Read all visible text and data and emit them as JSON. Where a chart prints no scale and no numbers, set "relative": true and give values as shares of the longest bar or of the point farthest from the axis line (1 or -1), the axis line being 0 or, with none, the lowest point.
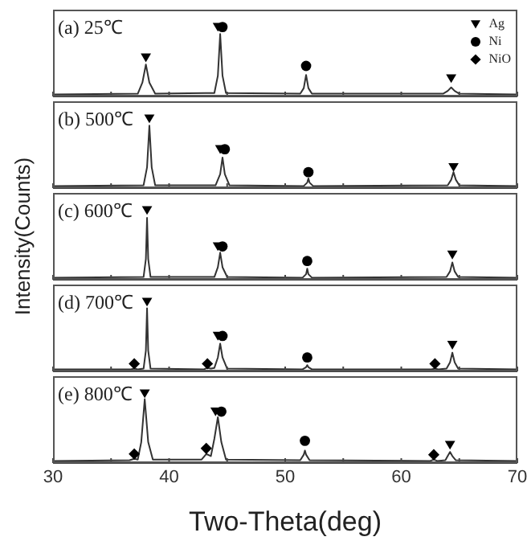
{
  "chart_data": [
    {
      "type": "line",
      "title": "(a) 25℃",
      "xlim": [
        30,
        70
      ],
      "xticks": [
        30,
        {
          "value": 35,
          "label": null
        },
        40,
        {
          "value": 45,
          "label": null
        },
        50,
        {
          "value": 55,
          "label": null
        },
        60,
        {
          "value": 65,
          "label": null
        },
        70
      ],
      "tick_labels": false,
      "relative": true,
      "legend": "top right",
      "series": [
        {
          "type": "line",
          "color": "#333333",
          "marker": "none",
          "x": [
            30,
            37.3,
            37.7,
            38.0,
            38.3,
            38.8,
            43.9,
            44.2,
            44.4,
            44.6,
            44.9,
            51.3,
            51.6,
            51.8,
            52.0,
            52.3,
            63.6,
            64.0,
            64.3,
            64.6,
            65.0,
            70
          ],
          "values": [
            0.03,
            0.04,
            0.2,
            0.46,
            0.2,
            0.04,
            0.05,
            0.3,
            0.9,
            0.3,
            0.05,
            0.04,
            0.12,
            0.31,
            0.12,
            0.04,
            0.04,
            0.08,
            0.13,
            0.08,
            0.04,
            0.03
          ]
        },
        {
          "type": "scatter",
          "name": "Ag",
          "marker": "triangle",
          "color": "#000000",
          "x": [
            38.0,
            44.2,
            64.3
          ],
          "values": [
            0.56,
            1,
            0.26
          ]
        },
        {
          "type": "scatter",
          "name": "Ni",
          "marker": "circle",
          "color": "#000000",
          "x": [
            44.6,
            51.8
          ],
          "values": [
            1,
            0.44
          ]
        },
        {
          "type": "scatter",
          "name": "NiO",
          "marker": "diamond",
          "color": "#000000"
        }
      ]
    },
    {
      "type": "line",
      "title": "(b) 500℃",
      "xlim": [
        30,
        70
      ],
      "xticks": [
        30,
        {
          "value": 35,
          "label": null
        },
        40,
        {
          "value": 45,
          "label": null
        },
        50,
        {
          "value": 55,
          "label": null
        },
        60,
        {
          "value": 65,
          "label": null
        },
        70
      ],
      "tick_labels": false,
      "relative": true,
      "series": [
        {
          "type": "line",
          "color": "#333333",
          "marker": "none",
          "x": [
            30,
            37.8,
            38.1,
            38.3,
            38.5,
            38.8,
            44.0,
            44.4,
            44.6,
            44.8,
            45.2,
            51.6,
            51.9,
            52.0,
            52.1,
            52.4,
            64.0,
            64.3,
            64.5,
            64.7,
            65.0,
            70
          ],
          "values": [
            0.03,
            0.04,
            0.3,
            0.9,
            0.3,
            0.04,
            0.04,
            0.2,
            0.44,
            0.2,
            0.04,
            0.03,
            0.08,
            0.14,
            0.08,
            0.03,
            0.04,
            0.12,
            0.23,
            0.12,
            0.04,
            0.03
          ]
        },
        {
          "type": "scatter",
          "marker": "triangle",
          "color": "#000000",
          "x": [
            38.3,
            44.4,
            64.5
          ],
          "values": [
            1,
            0.56,
            0.3
          ]
        },
        {
          "type": "scatter",
          "marker": "circle",
          "color": "#000000",
          "x": [
            44.8,
            52.0
          ],
          "values": [
            0.56,
            0.23
          ]
        }
      ]
    },
    {
      "type": "line",
      "title": "(c) 600℃",
      "ylabel": "Intensity(Counts)",
      "xlim": [
        30,
        70
      ],
      "xticks": [
        30,
        {
          "value": 35,
          "label": null
        },
        40,
        {
          "value": 45,
          "label": null
        },
        50,
        {
          "value": 55,
          "label": null
        },
        60,
        {
          "value": 65,
          "label": null
        },
        70
      ],
      "tick_labels": false,
      "relative": true,
      "series": [
        {
          "type": "line",
          "color": "#333333",
          "marker": "none",
          "x": [
            30,
            37.8,
            38.0,
            38.1,
            38.2,
            38.4,
            43.9,
            44.2,
            44.4,
            44.6,
            45.0,
            51.5,
            51.8,
            51.9,
            52.0,
            52.3,
            63.9,
            64.2,
            64.4,
            64.6,
            64.9,
            70
          ],
          "values": [
            0.03,
            0.04,
            0.3,
            0.89,
            0.3,
            0.04,
            0.04,
            0.18,
            0.39,
            0.18,
            0.04,
            0.03,
            0.08,
            0.16,
            0.08,
            0.03,
            0.04,
            0.12,
            0.25,
            0.12,
            0.04,
            0.03
          ]
        },
        {
          "type": "scatter",
          "marker": "triangle",
          "color": "#000000",
          "x": [
            38.1,
            44.2,
            64.4
          ],
          "values": [
            1,
            0.48,
            0.36
          ]
        },
        {
          "type": "scatter",
          "marker": "circle",
          "color": "#000000",
          "x": [
            44.6,
            51.9
          ],
          "values": [
            0.48,
            0.27
          ]
        }
      ]
    },
    {
      "type": "line",
      "title": "(d) 700℃",
      "xlim": [
        30,
        70
      ],
      "xticks": [
        30,
        {
          "value": 35,
          "label": null
        },
        40,
        {
          "value": 45,
          "label": null
        },
        50,
        {
          "value": 55,
          "label": null
        },
        60,
        {
          "value": 65,
          "label": null
        },
        70
      ],
      "tick_labels": false,
      "relative": true,
      "series": [
        {
          "type": "line",
          "color": "#333333",
          "marker": "none",
          "x": [
            30,
            36.7,
            37.0,
            37.3,
            37.8,
            38.0,
            38.1,
            38.2,
            38.4,
            43.0,
            43.3,
            43.6,
            43.9,
            44.2,
            44.4,
            44.6,
            45.0,
            51.5,
            51.8,
            51.9,
            52.0,
            52.3,
            62.6,
            62.9,
            63.2,
            63.9,
            64.2,
            64.4,
            64.6,
            64.9,
            70
          ],
          "values": [
            0.03,
            0.03,
            0.04,
            0.03,
            0.04,
            0.3,
            0.91,
            0.3,
            0.04,
            0.03,
            0.05,
            0.04,
            0.05,
            0.2,
            0.4,
            0.2,
            0.04,
            0.03,
            0.06,
            0.09,
            0.06,
            0.03,
            0.03,
            0.04,
            0.03,
            0.04,
            0.13,
            0.27,
            0.13,
            0.04,
            0.03
          ]
        },
        {
          "type": "scatter",
          "marker": "triangle",
          "color": "#000000",
          "x": [
            38.1,
            44.2,
            64.4
          ],
          "values": [
            1,
            0.51,
            0.38
          ]
        },
        {
          "type": "scatter",
          "marker": "circle",
          "color": "#000000",
          "x": [
            44.6,
            51.9
          ],
          "values": [
            0.51,
            0.2
          ]
        },
        {
          "type": "scatter",
          "marker": "diamond",
          "color": "#000000",
          "x": [
            37.0,
            43.3,
            62.9
          ],
          "values": [
            0.11,
            0.11,
            0.11
          ]
        }
      ]
    },
    {
      "type": "line",
      "title": "(e) 800℃",
      "xlabel": "Two-Theta(deg)",
      "xlim": [
        30,
        70
      ],
      "xticks": [
        30,
        {
          "value": 35,
          "label": null
        },
        40,
        {
          "value": 45,
          "label": null
        },
        50,
        {
          "value": 55,
          "label": null
        },
        60,
        {
          "value": 65,
          "label": null
        },
        70
      ],
      "relative": true,
      "series": [
        {
          "type": "line",
          "color": "#333333",
          "marker": "none",
          "x": [
            30,
            36.6,
            37.0,
            37.3,
            37.6,
            37.9,
            38.2,
            38.6,
            42.8,
            43.2,
            43.6,
            43.9,
            44.2,
            44.5,
            44.9,
            51.3,
            51.6,
            51.7,
            51.8,
            52.1,
            62.5,
            62.8,
            63.1,
            63.8,
            64.0,
            64.2,
            64.4,
            64.7,
            70
          ],
          "values": [
            0.03,
            0.04,
            0.06,
            0.05,
            0.3,
            0.92,
            0.3,
            0.05,
            0.05,
            0.13,
            0.1,
            0.35,
            0.66,
            0.3,
            0.05,
            0.04,
            0.12,
            0.18,
            0.12,
            0.04,
            0.03,
            0.05,
            0.03,
            0.04,
            0.1,
            0.16,
            0.1,
            0.04,
            0.03
          ]
        },
        {
          "type": "scatter",
          "marker": "triangle",
          "color": "#000000",
          "x": [
            37.9,
            44.0,
            64.2
          ],
          "values": [
            1,
            0.74,
            0.26
          ]
        },
        {
          "type": "scatter",
          "marker": "circle",
          "color": "#000000",
          "x": [
            44.5,
            51.7
          ],
          "values": [
            0.74,
            0.32
          ]
        },
        {
          "type": "scatter",
          "marker": "diamond",
          "color": "#000000",
          "x": [
            37.0,
            43.2,
            62.8
          ],
          "values": [
            0.13,
            0.21,
            0.12
          ]
        }
      ]
    }
  ]
}
